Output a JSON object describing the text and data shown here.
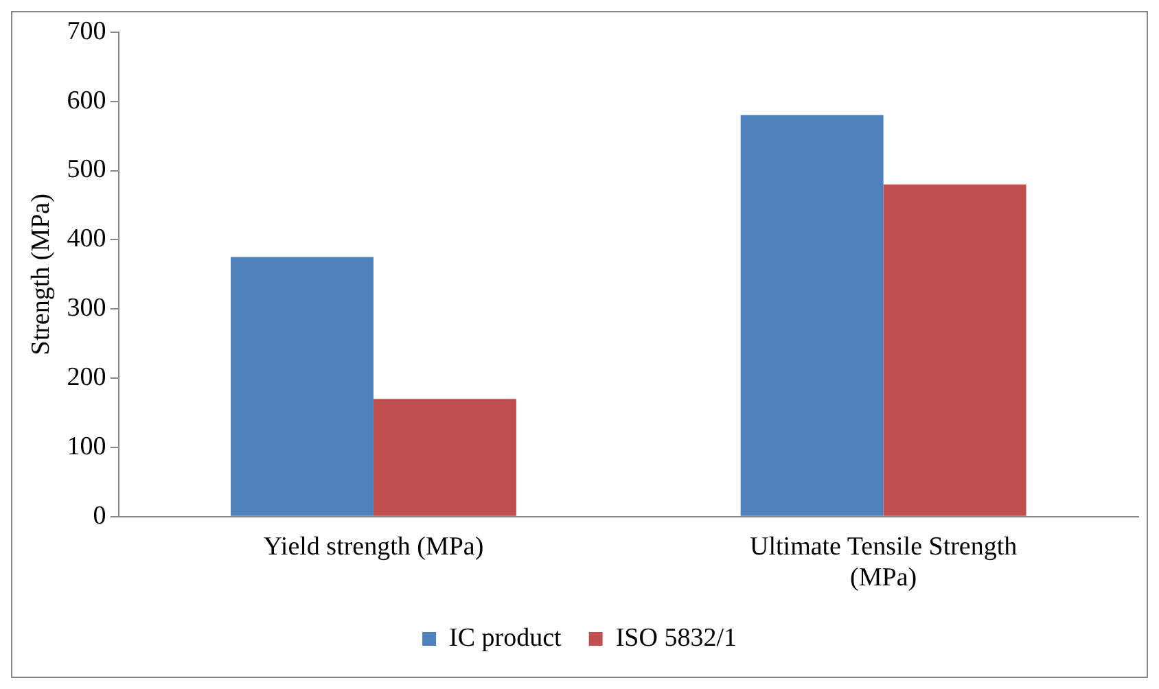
{
  "chart_data": {
    "type": "bar",
    "ylabel": "Strength (MPa)",
    "categories": [
      "Yield strength (MPa)",
      "Ultimate Tensile Strength (MPa)"
    ],
    "series": [
      {
        "name": "IC product",
        "color": "#4f81bd",
        "values": [
          375,
          580
        ]
      },
      {
        "name": "ISO 5832/1",
        "color": "#c0504d",
        "values": [
          170,
          480
        ]
      }
    ],
    "ylim": [
      0,
      700
    ],
    "yticks": [
      0,
      100,
      200,
      300,
      400,
      500,
      600,
      700
    ],
    "grid": false,
    "legend": "bottom"
  }
}
